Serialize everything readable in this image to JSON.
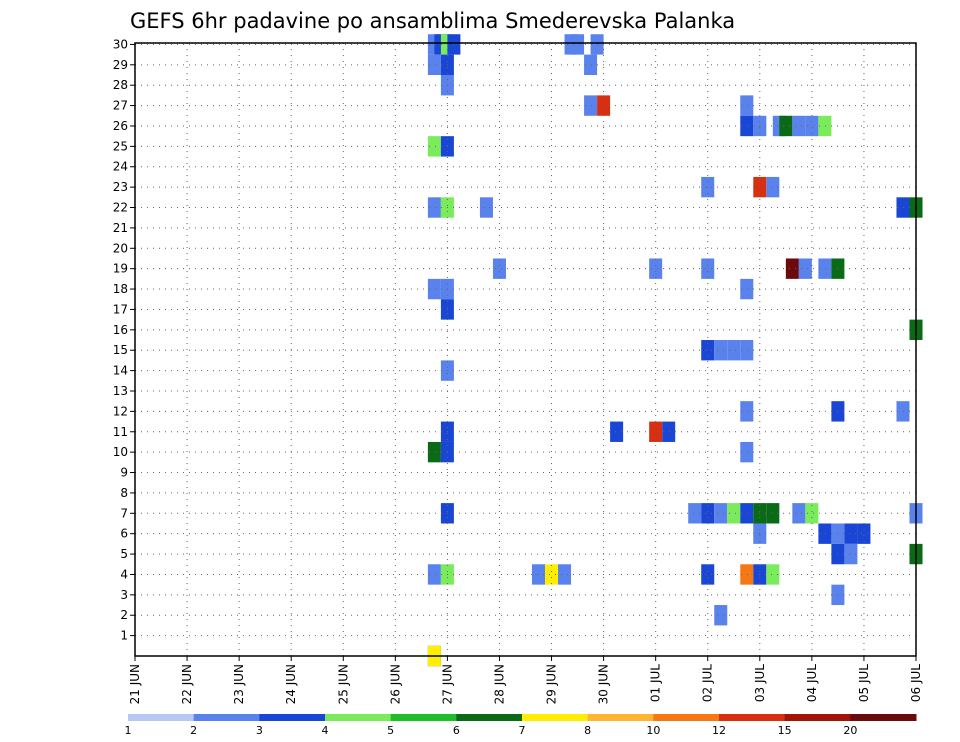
{
  "chart_data": {
    "type": "heatmap",
    "title": "GEFS 6hr padavine po ansamblima Smederevska Palanka",
    "x_labels": [
      "21 JUN",
      "22 JUN",
      "23 JUN",
      "24 JUN",
      "25 JUN",
      "26 JUN",
      "27 JUN",
      "28 JUN",
      "29 JUN",
      "30 JUN",
      "01 JUL",
      "02 JUL",
      "03 JUL",
      "04 JUL",
      "05 JUL",
      "06 JUL"
    ],
    "y_labels": [
      "1",
      "2",
      "3",
      "4",
      "5",
      "6",
      "7",
      "8",
      "9",
      "10",
      "11",
      "12",
      "13",
      "14",
      "15",
      "16",
      "17",
      "18",
      "19",
      "20",
      "21",
      "22",
      "23",
      "24",
      "25",
      "26",
      "27",
      "28",
      "29",
      "30"
    ],
    "x_range_steps": [
      0,
      60
    ],
    "y_range": [
      0,
      30
    ],
    "steps_per_day": 4,
    "grid": true,
    "colorbar": {
      "labels": [
        "1",
        "2",
        "3",
        "4",
        "5",
        "6",
        "7",
        "8",
        "10",
        "12",
        "15",
        "20"
      ],
      "colors": [
        "#b8c8f5",
        "#5a82ec",
        "#1a46d6",
        "#7aeb5a",
        "#1ebd2a",
        "#0a6a16",
        "#ffee00",
        "#ffb432",
        "#f57814",
        "#d72f0f",
        "#a0140a",
        "#6a0a0a"
      ]
    },
    "cells": [
      [
        0,
        23,
        2
      ],
      [
        30,
        23,
        1
      ],
      [
        30,
        23.5,
        2
      ],
      [
        30,
        24,
        3
      ],
      [
        30,
        24.5,
        2
      ],
      [
        30,
        33.5,
        1
      ],
      [
        30,
        34,
        1
      ],
      [
        30,
        35.5,
        1
      ],
      [
        29,
        23,
        1
      ],
      [
        29,
        24,
        2
      ],
      [
        29,
        35,
        1
      ],
      [
        28,
        24,
        1
      ],
      [
        27,
        35,
        1
      ],
      [
        27,
        36,
        9
      ],
      [
        27,
        47,
        1
      ],
      [
        26,
        47,
        2
      ],
      [
        26,
        48,
        1
      ],
      [
        26,
        49.5,
        1
      ],
      [
        26,
        50,
        5
      ],
      [
        26,
        51,
        1
      ],
      [
        26,
        52,
        1
      ],
      [
        26,
        53,
        3
      ],
      [
        25,
        23,
        3
      ],
      [
        25,
        24,
        2
      ],
      [
        23,
        44,
        1
      ],
      [
        23,
        48,
        9
      ],
      [
        23,
        49,
        1
      ],
      [
        22,
        23,
        1
      ],
      [
        22,
        24,
        3
      ],
      [
        22,
        27,
        1
      ],
      [
        22,
        59,
        2
      ],
      [
        22,
        60,
        5
      ],
      [
        19,
        28,
        1
      ],
      [
        19,
        40,
        1
      ],
      [
        19,
        44,
        1
      ],
      [
        19,
        50.5,
        11
      ],
      [
        19,
        51.5,
        1
      ],
      [
        19,
        53,
        1
      ],
      [
        19,
        54,
        5
      ],
      [
        18,
        23,
        1
      ],
      [
        18,
        24,
        1
      ],
      [
        18,
        47,
        1
      ],
      [
        17,
        24,
        2
      ],
      [
        16,
        60,
        5
      ],
      [
        15,
        44,
        2
      ],
      [
        15,
        45,
        1
      ],
      [
        15,
        46,
        1
      ],
      [
        15,
        47,
        1
      ],
      [
        14,
        24,
        1
      ],
      [
        12,
        47,
        1
      ],
      [
        12,
        54,
        2
      ],
      [
        12,
        59,
        1
      ],
      [
        11,
        24,
        2
      ],
      [
        11,
        37,
        2
      ],
      [
        11,
        40,
        9
      ],
      [
        11,
        41,
        2
      ],
      [
        10,
        23,
        5
      ],
      [
        10,
        24,
        2
      ],
      [
        10,
        47,
        1
      ],
      [
        7,
        24,
        2
      ],
      [
        7,
        43,
        1
      ],
      [
        7,
        44,
        2
      ],
      [
        7,
        45,
        1
      ],
      [
        7,
        46,
        3
      ],
      [
        7,
        47,
        2
      ],
      [
        7,
        48,
        5
      ],
      [
        7,
        49,
        5
      ],
      [
        7,
        51,
        1
      ],
      [
        7,
        52,
        3
      ],
      [
        7,
        60,
        1
      ],
      [
        6,
        48,
        1
      ],
      [
        6,
        53,
        2
      ],
      [
        6,
        54,
        1
      ],
      [
        6,
        55,
        2
      ],
      [
        6,
        56,
        2
      ],
      [
        5,
        54,
        2
      ],
      [
        5,
        55,
        1
      ],
      [
        5,
        60,
        5
      ],
      [
        4,
        23,
        1
      ],
      [
        4,
        24,
        3
      ],
      [
        4,
        31,
        1
      ],
      [
        4,
        32,
        6
      ],
      [
        4,
        33,
        1
      ],
      [
        4,
        44,
        2
      ],
      [
        4,
        47,
        8
      ],
      [
        4,
        48,
        2
      ],
      [
        4,
        49,
        3
      ],
      [
        3,
        54,
        1
      ],
      [
        2,
        45,
        1
      ],
      [
        0,
        23,
        6
      ]
    ]
  }
}
